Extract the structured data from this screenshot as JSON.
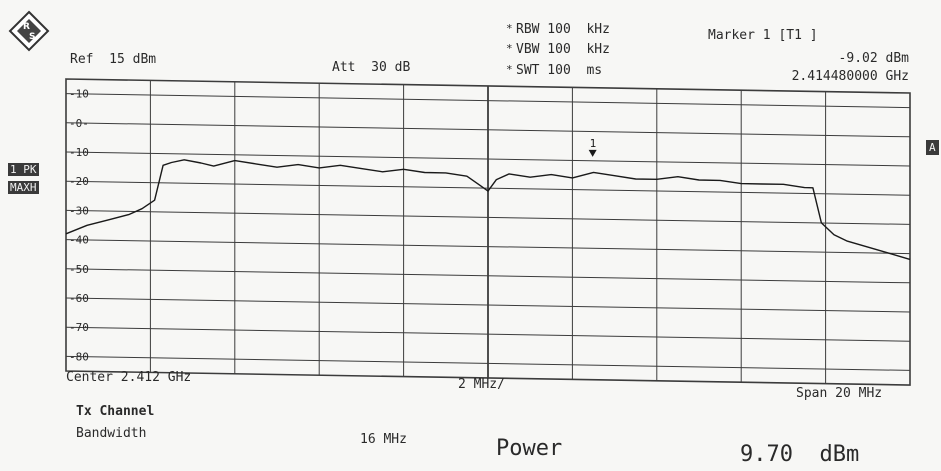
{
  "header": {
    "ref": "Ref  15 dBm",
    "att": "Att  30 dB",
    "rbw": "RBW 100  kHz",
    "vbw": "VBW 100  kHz",
    "swt": "SWT 100  ms",
    "star": "*",
    "marker_title": "Marker 1 [T1 ]",
    "marker_level": "-9.02 dBm",
    "marker_freq": "2.414480000 GHz"
  },
  "side": {
    "trace_tag": "1 PK",
    "trace_mode": "MAXH",
    "right_tag": "A"
  },
  "footer": {
    "center": "Center 2.412 GHz",
    "per_div": "2 MHz/",
    "span": "Span 20 MHz",
    "tx_channel": "Tx Channel",
    "bandwidth_label": "Bandwidth",
    "bandwidth_value": "16 MHz",
    "power_label": "Power",
    "power_value": "9.70  dBm"
  },
  "colors": {
    "trace": "#1a1a1a",
    "grid": "#3c3c3c",
    "background": "#f7f7f5"
  },
  "chart_data": {
    "type": "line",
    "title": "",
    "xlabel": "",
    "ylabel": "",
    "xlim": [
      2.402,
      2.422
    ],
    "ylim": [
      -85,
      15
    ],
    "x_unit": "GHz",
    "y_unit": "dBm",
    "grid": true,
    "yticks": [
      10,
      0,
      -10,
      -20,
      -30,
      -40,
      -50,
      -60,
      -70,
      -80
    ],
    "ytick_labels": [
      "-10",
      "-0-",
      "-10",
      "-20",
      "-30",
      "-40",
      "-50",
      "-60",
      "-70",
      "-80"
    ],
    "marker": {
      "label": "1",
      "x": 2.41448,
      "y": -9.02
    },
    "series": [
      {
        "x": [
          2.402,
          2.4025,
          2.403,
          2.4035,
          2.4038,
          2.4041,
          2.4043,
          2.4045,
          2.4048,
          2.4052,
          2.4055,
          2.406,
          2.4065,
          2.407,
          2.4075,
          2.408,
          2.4085,
          2.409,
          2.4095,
          2.41,
          2.4105,
          2.411,
          2.4115,
          2.4118,
          2.412,
          2.4122,
          2.4125,
          2.413,
          2.4135,
          2.414,
          2.4145,
          2.415,
          2.4155,
          2.416,
          2.4165,
          2.417,
          2.4175,
          2.418,
          2.4185,
          2.419,
          2.4195,
          2.4197,
          2.4199,
          2.4202,
          2.4205,
          2.421,
          2.4215,
          2.422
        ],
        "y": [
          -38,
          -35,
          -33,
          -31,
          -29,
          -26,
          -14,
          -13,
          -12,
          -13,
          -14,
          -12,
          -13,
          -14,
          -13,
          -14,
          -13,
          -14,
          -15,
          -14,
          -15,
          -15,
          -16,
          -19,
          -21,
          -17,
          -15,
          -16,
          -15,
          -16,
          -14,
          -15,
          -16,
          -16,
          -15,
          -16,
          -16,
          -17,
          -17,
          -17,
          -18,
          -18,
          -30,
          -34,
          -36,
          -38,
          -40,
          -42
        ]
      }
    ]
  }
}
